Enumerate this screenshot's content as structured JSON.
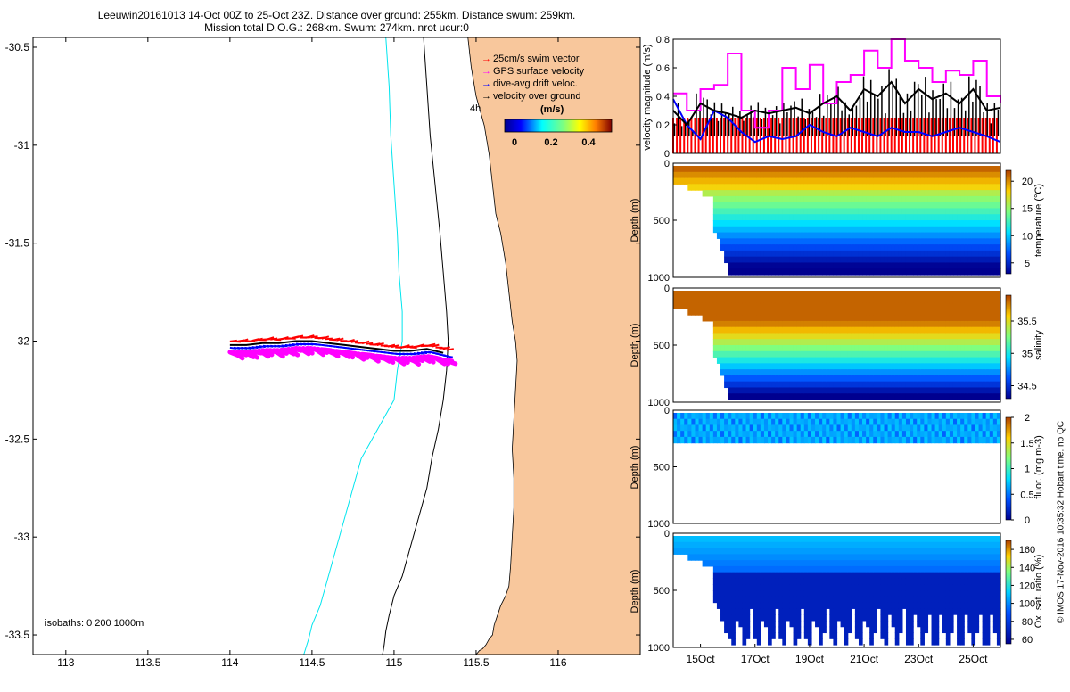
{
  "title_line1": "Leeuwin20161013 14-Oct 00Z to 25-Oct 23Z. Distance over ground: 255km. Distance swum: 259km.",
  "title_line2": "Mission total D.O.G.: 268km. Swum: 274km. nrot ucur:0",
  "watermark": "© IMOS 17-Nov-2016 10:35:32 Hobart time. no QC",
  "colors": {
    "land": "#f8c79c",
    "isobath_200": "#000000",
    "isobath_1000": "#00e5ee",
    "swim": "#ff0000",
    "gps": "#ff00ff",
    "drift": "#0000ff",
    "ground": "#000000"
  },
  "chart_data": [
    {
      "type": "scatter",
      "name": "map",
      "xlabel": "",
      "ylabel": "",
      "xlim": [
        112.8,
        116.5
      ],
      "ylim": [
        -33.6,
        -30.45
      ],
      "x_ticks": [
        113,
        113.5,
        114,
        114.5,
        115,
        115.5,
        116
      ],
      "x_tick_labels": [
        "113",
        "113.5",
        "114",
        "114.5",
        "115",
        "115.5",
        "116"
      ],
      "y_ticks": [
        -30.5,
        -31,
        -31.5,
        -32,
        -32.5,
        -33,
        -33.5
      ],
      "y_tick_labels": [
        "-30.5",
        "-31",
        "-31.5",
        "-32",
        "-32.5",
        "-33",
        "-33.5"
      ],
      "legend": [
        {
          "label": "25cm/s swim vector",
          "color": "#ff0000"
        },
        {
          "label": "GPS surface velocity",
          "color": "#ff00ff"
        },
        {
          "label": "dive-avg drift veloc.",
          "color": "#0000ff"
        },
        {
          "label": "velocity over ground",
          "color": "#000000"
        }
      ],
      "legend_position": "top-right",
      "time_step_label": "4h",
      "colorbar_label": "(m/s)",
      "colorbar_ticks": [
        "0",
        "0.2",
        "0.4"
      ],
      "isobaths_label": "isobaths: 0   200  1000m",
      "track": {
        "lon": [
          114.0,
          114.1,
          114.2,
          114.3,
          114.4,
          114.5,
          114.6,
          114.7,
          114.8,
          114.9,
          115.0,
          115.1,
          115.2,
          115.3
        ],
        "lat": [
          -32.02,
          -32.02,
          -32.01,
          -32.01,
          -32.0,
          -32.0,
          -32.01,
          -32.02,
          -32.03,
          -32.04,
          -32.05,
          -32.05,
          -32.04,
          -32.06
        ]
      },
      "coast": {
        "lon": [
          115.45,
          115.47,
          115.5,
          115.55,
          115.58,
          115.6,
          115.62,
          115.65,
          115.68,
          115.7,
          115.72,
          115.74,
          115.75,
          115.74,
          115.73,
          115.72,
          115.73,
          115.73,
          115.72,
          115.71,
          115.7,
          115.68,
          115.65,
          115.63,
          115.61,
          115.6,
          115.58,
          115.56,
          115.54,
          115.52,
          115.5,
          115.48,
          115.46
        ],
        "lat": [
          -30.45,
          -30.6,
          -30.75,
          -30.9,
          -31.05,
          -31.2,
          -31.35,
          -31.45,
          -31.6,
          -31.75,
          -31.9,
          -32.0,
          -32.1,
          -32.25,
          -32.4,
          -32.55,
          -32.7,
          -32.85,
          -33.0,
          -33.15,
          -33.25,
          -33.3,
          -33.35,
          -33.4,
          -33.45,
          -33.5,
          -33.52,
          -33.55,
          -33.57,
          -33.58,
          -33.6,
          -33.6,
          -33.6
        ]
      },
      "isobath_200": {
        "lon": [
          115.18,
          115.2,
          115.22,
          115.25,
          115.28,
          115.3,
          115.32,
          115.33,
          115.32,
          115.3,
          115.27,
          115.23,
          115.2,
          115.15,
          115.1,
          115.05,
          115.0,
          114.97,
          114.95,
          114.94,
          114.93
        ],
        "lat": [
          -30.45,
          -30.7,
          -30.95,
          -31.2,
          -31.45,
          -31.65,
          -31.85,
          -32.0,
          -32.15,
          -32.3,
          -32.45,
          -32.6,
          -32.75,
          -32.9,
          -33.05,
          -33.2,
          -33.3,
          -33.4,
          -33.48,
          -33.55,
          -33.6
        ]
      },
      "isobath_1000": {
        "lon": [
          114.95,
          114.97,
          114.98,
          115.0,
          115.02,
          115.03,
          115.05,
          115.05,
          115.02,
          115.0,
          114.9,
          114.8,
          114.75,
          114.7,
          114.65,
          114.6,
          114.55,
          114.5,
          114.48,
          114.45
        ],
        "lat": [
          -30.45,
          -30.7,
          -30.95,
          -31.2,
          -31.45,
          -31.65,
          -31.85,
          -32.0,
          -32.15,
          -32.3,
          -32.45,
          -32.6,
          -32.75,
          -32.9,
          -33.05,
          -33.2,
          -33.35,
          -33.45,
          -33.52,
          -33.6
        ]
      }
    },
    {
      "type": "line",
      "name": "velocity",
      "ylabel": "velocity magnitude (m/s)",
      "ylim": [
        0,
        0.8
      ],
      "y_ticks": [
        "0",
        "0.2",
        "0.4",
        "0.6",
        "0.8"
      ],
      "x": [
        14.0,
        14.5,
        15.0,
        15.5,
        16.0,
        16.5,
        17.0,
        17.5,
        18.0,
        18.5,
        19.0,
        19.5,
        20.0,
        20.5,
        21.0,
        21.5,
        22.0,
        22.5,
        23.0,
        23.5,
        24.0,
        24.5,
        25.0,
        25.5,
        26.0
      ],
      "series": [
        {
          "name": "25cm/s swim vector",
          "color": "#ff0000",
          "values": [
            0.25,
            0.25,
            0.25,
            0.25,
            0.25,
            0.25,
            0.25,
            0.25,
            0.25,
            0.25,
            0.25,
            0.25,
            0.25,
            0.25,
            0.25,
            0.25,
            0.25,
            0.25,
            0.25,
            0.25,
            0.25,
            0.25,
            0.25,
            0.25,
            0.25
          ]
        },
        {
          "name": "GPS surface velocity",
          "color": "#ff00ff",
          "values": [
            0.42,
            0.3,
            0.45,
            0.48,
            0.7,
            0.3,
            0.18,
            0.3,
            0.6,
            0.45,
            0.62,
            0.35,
            0.5,
            0.55,
            0.72,
            0.6,
            0.8,
            0.65,
            0.6,
            0.5,
            0.58,
            0.55,
            0.65,
            0.4,
            0.35
          ]
        },
        {
          "name": "dive-avg drift veloc.",
          "color": "#0000ff",
          "values": [
            0.38,
            0.2,
            0.1,
            0.3,
            0.25,
            0.15,
            0.08,
            0.12,
            0.1,
            0.12,
            0.2,
            0.15,
            0.12,
            0.18,
            0.15,
            0.12,
            0.18,
            0.15,
            0.15,
            0.12,
            0.15,
            0.18,
            0.15,
            0.12,
            0.08
          ]
        },
        {
          "name": "velocity over ground",
          "color": "#000000",
          "values": [
            0.3,
            0.2,
            0.35,
            0.3,
            0.28,
            0.25,
            0.3,
            0.28,
            0.3,
            0.32,
            0.28,
            0.35,
            0.4,
            0.3,
            0.45,
            0.4,
            0.5,
            0.35,
            0.45,
            0.38,
            0.42,
            0.35,
            0.45,
            0.3,
            0.32
          ]
        }
      ]
    },
    {
      "type": "heatmap",
      "name": "temperature",
      "ylabel": "Depth (m)",
      "colorbar_label": "temperature (°C)",
      "colorbar_ticks": [
        "5",
        "10",
        "15",
        "20"
      ],
      "vlim": [
        3,
        22
      ],
      "y_ticks": [
        "0",
        "500",
        "1000"
      ],
      "ylim": [
        1000,
        0
      ]
    },
    {
      "type": "heatmap",
      "name": "salinity",
      "ylabel": "Depth (m)",
      "colorbar_label": "salinity",
      "colorbar_ticks": [
        "34.5",
        "35",
        "35.5"
      ],
      "vlim": [
        34.3,
        35.9
      ],
      "y_ticks": [
        "0",
        "500",
        "1000"
      ],
      "ylim": [
        1000,
        0
      ]
    },
    {
      "type": "heatmap",
      "name": "fluorescence",
      "ylabel": "Depth (m)",
      "colorbar_label": "fluor. (mg m-3)",
      "colorbar_ticks": [
        "0",
        "0.5",
        "1",
        "1.5",
        "2"
      ],
      "vlim": [
        0,
        2
      ],
      "y_ticks": [
        "0",
        "500",
        "1000"
      ],
      "ylim": [
        1000,
        0
      ]
    },
    {
      "type": "heatmap",
      "name": "oxygen",
      "ylabel": "Depth (m)",
      "colorbar_label": "Ox. sat. ratio (%)",
      "colorbar_ticks": [
        "60",
        "80",
        "100",
        "120",
        "140",
        "160"
      ],
      "vlim": [
        55,
        170
      ],
      "y_ticks": [
        "0",
        "500",
        "1000"
      ],
      "ylim": [
        1000,
        0
      ],
      "x_tick_labels": [
        "15Oct",
        "17Oct",
        "19Oct",
        "21Oct",
        "23Oct",
        "25Oct"
      ]
    }
  ]
}
